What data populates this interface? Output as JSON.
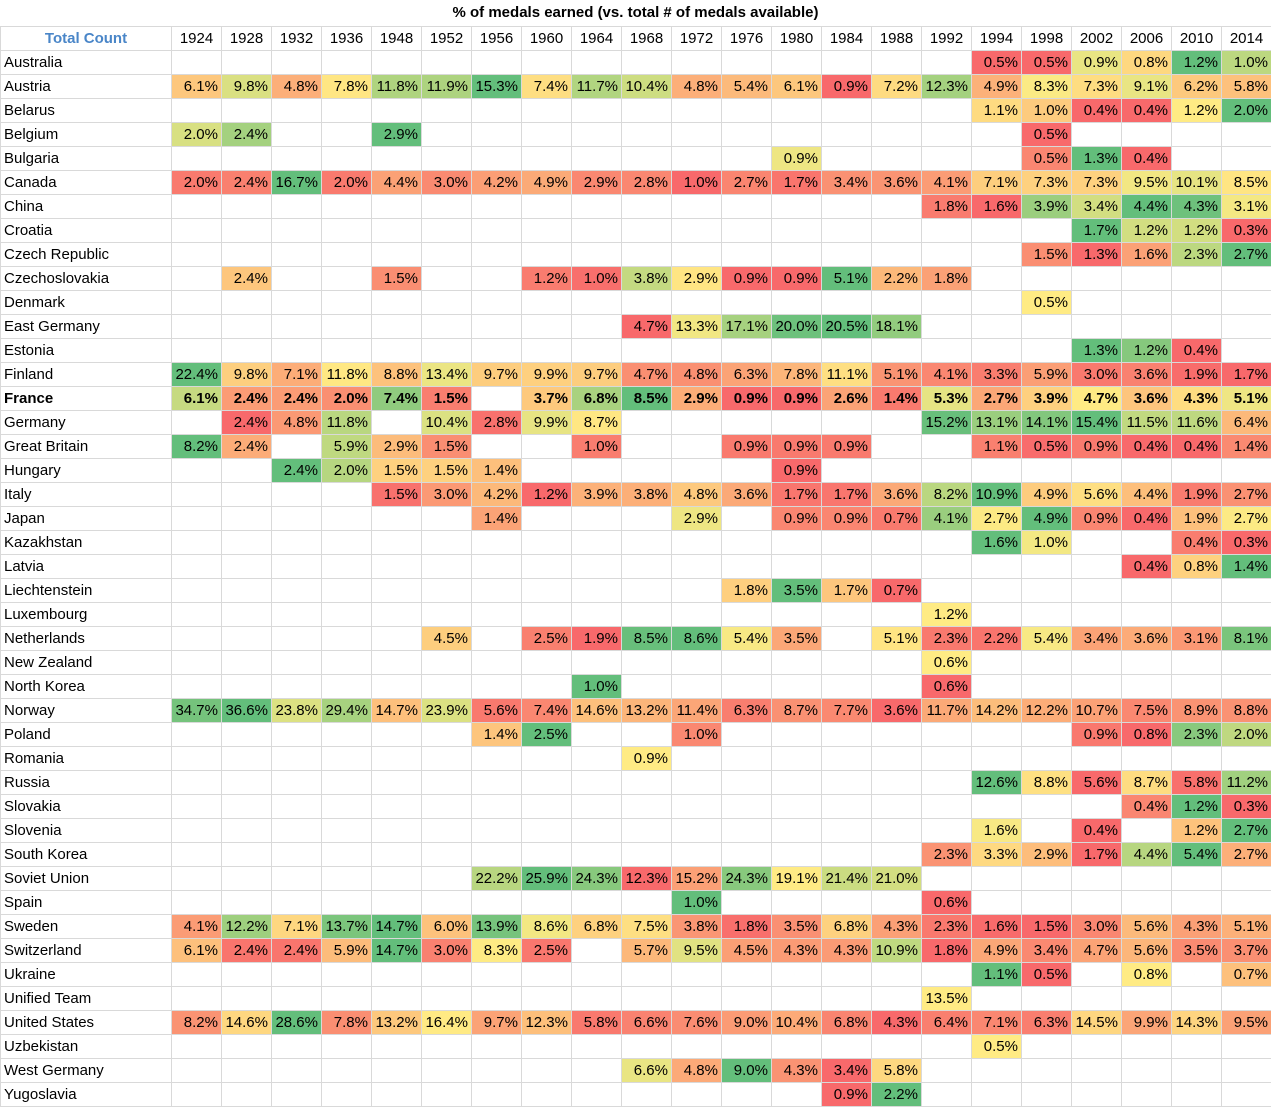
{
  "title": "% of medals earned (vs. total # of medals available)",
  "corner_label": "Total Count",
  "bold_row": "France",
  "colors": {
    "low": "#f8696b",
    "mid": "#ffeb84",
    "high": "#63be7b",
    "header_text": "#4a86c8"
  },
  "chart_data": {
    "type": "heatmap",
    "title": "% of medals earned (vs. total # of medals available)",
    "columns": [
      "1924",
      "1928",
      "1932",
      "1936",
      "1948",
      "1952",
      "1956",
      "1960",
      "1964",
      "1968",
      "1972",
      "1976",
      "1980",
      "1984",
      "1988",
      "1992",
      "1994",
      "1998",
      "2002",
      "2006",
      "2010",
      "2014"
    ],
    "rows": [
      {
        "country": "Australia",
        "values": [
          null,
          null,
          null,
          null,
          null,
          null,
          null,
          null,
          null,
          null,
          null,
          null,
          null,
          null,
          null,
          null,
          0.5,
          0.5,
          0.9,
          0.8,
          1.2,
          1.0
        ]
      },
      {
        "country": "Austria",
        "values": [
          6.1,
          9.8,
          4.8,
          7.8,
          11.8,
          11.9,
          15.3,
          7.4,
          11.7,
          10.4,
          4.8,
          5.4,
          6.1,
          0.9,
          7.2,
          12.3,
          4.9,
          8.3,
          7.3,
          9.1,
          6.2,
          5.8
        ]
      },
      {
        "country": "Belarus",
        "values": [
          null,
          null,
          null,
          null,
          null,
          null,
          null,
          null,
          null,
          null,
          null,
          null,
          null,
          null,
          null,
          null,
          1.1,
          1.0,
          0.4,
          0.4,
          1.2,
          2.0
        ]
      },
      {
        "country": "Belgium",
        "values": [
          2.0,
          2.4,
          null,
          null,
          2.9,
          null,
          null,
          null,
          null,
          null,
          null,
          null,
          null,
          null,
          null,
          null,
          null,
          0.5,
          null,
          null,
          null,
          null
        ]
      },
      {
        "country": "Bulgaria",
        "values": [
          null,
          null,
          null,
          null,
          null,
          null,
          null,
          null,
          null,
          null,
          null,
          null,
          0.9,
          null,
          null,
          null,
          null,
          0.5,
          1.3,
          0.4,
          null,
          null
        ]
      },
      {
        "country": "Canada",
        "values": [
          2.0,
          2.4,
          16.7,
          2.0,
          4.4,
          3.0,
          4.2,
          4.9,
          2.9,
          2.8,
          1.0,
          2.7,
          1.7,
          3.4,
          3.6,
          4.1,
          7.1,
          7.3,
          7.3,
          9.5,
          10.1,
          8.5
        ]
      },
      {
        "country": "China",
        "values": [
          null,
          null,
          null,
          null,
          null,
          null,
          null,
          null,
          null,
          null,
          null,
          null,
          null,
          null,
          null,
          1.8,
          1.6,
          3.9,
          3.4,
          4.4,
          4.3,
          3.1
        ]
      },
      {
        "country": "Croatia",
        "values": [
          null,
          null,
          null,
          null,
          null,
          null,
          null,
          null,
          null,
          null,
          null,
          null,
          null,
          null,
          null,
          null,
          null,
          null,
          1.7,
          1.2,
          1.2,
          0.3
        ]
      },
      {
        "country": "Czech Republic",
        "values": [
          null,
          null,
          null,
          null,
          null,
          null,
          null,
          null,
          null,
          null,
          null,
          null,
          null,
          null,
          null,
          null,
          null,
          1.5,
          1.3,
          1.6,
          2.3,
          2.7
        ]
      },
      {
        "country": "Czechoslovakia",
        "values": [
          null,
          2.4,
          null,
          null,
          1.5,
          null,
          null,
          1.2,
          1.0,
          3.8,
          2.9,
          0.9,
          0.9,
          5.1,
          2.2,
          1.8,
          null,
          null,
          null,
          null,
          null,
          null
        ]
      },
      {
        "country": "Denmark",
        "values": [
          null,
          null,
          null,
          null,
          null,
          null,
          null,
          null,
          null,
          null,
          null,
          null,
          null,
          null,
          null,
          null,
          null,
          0.5,
          null,
          null,
          null,
          null
        ]
      },
      {
        "country": "East Germany",
        "values": [
          null,
          null,
          null,
          null,
          null,
          null,
          null,
          null,
          null,
          4.7,
          13.3,
          17.1,
          20.0,
          20.5,
          18.1,
          null,
          null,
          null,
          null,
          null,
          null,
          null
        ]
      },
      {
        "country": "Estonia",
        "values": [
          null,
          null,
          null,
          null,
          null,
          null,
          null,
          null,
          null,
          null,
          null,
          null,
          null,
          null,
          null,
          null,
          null,
          null,
          1.3,
          1.2,
          0.4,
          null
        ]
      },
      {
        "country": "Finland",
        "values": [
          22.4,
          9.8,
          7.1,
          11.8,
          8.8,
          13.4,
          9.7,
          9.9,
          9.7,
          4.7,
          4.8,
          6.3,
          7.8,
          11.1,
          5.1,
          4.1,
          3.3,
          5.9,
          3.0,
          3.6,
          1.9,
          1.7
        ]
      },
      {
        "country": "France",
        "values": [
          6.1,
          2.4,
          2.4,
          2.0,
          7.4,
          1.5,
          null,
          3.7,
          6.8,
          8.5,
          2.9,
          0.9,
          0.9,
          2.6,
          1.4,
          5.3,
          2.7,
          3.9,
          4.7,
          3.6,
          4.3,
          5.1
        ]
      },
      {
        "country": "Germany",
        "values": [
          null,
          2.4,
          4.8,
          11.8,
          null,
          10.4,
          2.8,
          9.9,
          8.7,
          null,
          null,
          null,
          null,
          null,
          null,
          15.2,
          13.1,
          14.1,
          15.4,
          11.5,
          11.6,
          6.4
        ]
      },
      {
        "country": "Great Britain",
        "values": [
          8.2,
          2.4,
          null,
          5.9,
          2.9,
          1.5,
          null,
          null,
          1.0,
          null,
          null,
          0.9,
          0.9,
          0.9,
          null,
          null,
          1.1,
          0.5,
          0.9,
          0.4,
          0.4,
          1.4
        ]
      },
      {
        "country": "Hungary",
        "values": [
          null,
          null,
          2.4,
          2.0,
          1.5,
          1.5,
          1.4,
          null,
          null,
          null,
          null,
          null,
          0.9,
          null,
          null,
          null,
          null,
          null,
          null,
          null,
          null,
          null
        ]
      },
      {
        "country": "Italy",
        "values": [
          null,
          null,
          null,
          null,
          1.5,
          3.0,
          4.2,
          1.2,
          3.9,
          3.8,
          4.8,
          3.6,
          1.7,
          1.7,
          3.6,
          8.2,
          10.9,
          4.9,
          5.6,
          4.4,
          1.9,
          2.7
        ]
      },
      {
        "country": "Japan",
        "values": [
          null,
          null,
          null,
          null,
          null,
          null,
          1.4,
          null,
          null,
          null,
          2.9,
          null,
          0.9,
          0.9,
          0.7,
          4.1,
          2.7,
          4.9,
          0.9,
          0.4,
          1.9,
          2.7
        ]
      },
      {
        "country": "Kazakhstan",
        "values": [
          null,
          null,
          null,
          null,
          null,
          null,
          null,
          null,
          null,
          null,
          null,
          null,
          null,
          null,
          null,
          null,
          1.6,
          1.0,
          null,
          null,
          0.4,
          0.3
        ]
      },
      {
        "country": "Latvia",
        "values": [
          null,
          null,
          null,
          null,
          null,
          null,
          null,
          null,
          null,
          null,
          null,
          null,
          null,
          null,
          null,
          null,
          null,
          null,
          null,
          0.4,
          0.8,
          1.4
        ]
      },
      {
        "country": "Liechtenstein",
        "values": [
          null,
          null,
          null,
          null,
          null,
          null,
          null,
          null,
          null,
          null,
          null,
          1.8,
          3.5,
          1.7,
          0.7,
          null,
          null,
          null,
          null,
          null,
          null,
          null
        ]
      },
      {
        "country": "Luxembourg",
        "values": [
          null,
          null,
          null,
          null,
          null,
          null,
          null,
          null,
          null,
          null,
          null,
          null,
          null,
          null,
          null,
          1.2,
          null,
          null,
          null,
          null,
          null,
          null
        ]
      },
      {
        "country": "Netherlands",
        "values": [
          null,
          null,
          null,
          null,
          null,
          4.5,
          null,
          2.5,
          1.9,
          8.5,
          8.6,
          5.4,
          3.5,
          null,
          5.1,
          2.3,
          2.2,
          5.4,
          3.4,
          3.6,
          3.1,
          8.1
        ]
      },
      {
        "country": "New Zealand",
        "values": [
          null,
          null,
          null,
          null,
          null,
          null,
          null,
          null,
          null,
          null,
          null,
          null,
          null,
          null,
          null,
          0.6,
          null,
          null,
          null,
          null,
          null,
          null
        ]
      },
      {
        "country": "North Korea",
        "values": [
          null,
          null,
          null,
          null,
          null,
          null,
          null,
          null,
          1.0,
          null,
          null,
          null,
          null,
          null,
          null,
          0.6,
          null,
          null,
          null,
          null,
          null,
          null
        ]
      },
      {
        "country": "Norway",
        "values": [
          34.7,
          36.6,
          23.8,
          29.4,
          14.7,
          23.9,
          5.6,
          7.4,
          14.6,
          13.2,
          11.4,
          6.3,
          8.7,
          7.7,
          3.6,
          11.7,
          14.2,
          12.2,
          10.7,
          7.5,
          8.9,
          8.8
        ]
      },
      {
        "country": "Poland",
        "values": [
          null,
          null,
          null,
          null,
          null,
          null,
          1.4,
          2.5,
          null,
          null,
          1.0,
          null,
          null,
          null,
          null,
          null,
          null,
          null,
          0.9,
          0.8,
          2.3,
          2.0
        ]
      },
      {
        "country": "Romania",
        "values": [
          null,
          null,
          null,
          null,
          null,
          null,
          null,
          null,
          null,
          0.9,
          null,
          null,
          null,
          null,
          null,
          null,
          null,
          null,
          null,
          null,
          null,
          null
        ]
      },
      {
        "country": "Russia",
        "values": [
          null,
          null,
          null,
          null,
          null,
          null,
          null,
          null,
          null,
          null,
          null,
          null,
          null,
          null,
          null,
          null,
          12.6,
          8.8,
          5.6,
          8.7,
          5.8,
          11.2
        ]
      },
      {
        "country": "Slovakia",
        "values": [
          null,
          null,
          null,
          null,
          null,
          null,
          null,
          null,
          null,
          null,
          null,
          null,
          null,
          null,
          null,
          null,
          null,
          null,
          null,
          0.4,
          1.2,
          0.3
        ]
      },
      {
        "country": "Slovenia",
        "values": [
          null,
          null,
          null,
          null,
          null,
          null,
          null,
          null,
          null,
          null,
          null,
          null,
          null,
          null,
          null,
          null,
          1.6,
          null,
          0.4,
          null,
          1.2,
          2.7
        ]
      },
      {
        "country": "South Korea",
        "values": [
          null,
          null,
          null,
          null,
          null,
          null,
          null,
          null,
          null,
          null,
          null,
          null,
          null,
          null,
          null,
          2.3,
          3.3,
          2.9,
          1.7,
          4.4,
          5.4,
          2.7
        ]
      },
      {
        "country": "Soviet Union",
        "values": [
          null,
          null,
          null,
          null,
          null,
          null,
          22.2,
          25.9,
          24.3,
          12.3,
          15.2,
          24.3,
          19.1,
          21.4,
          21.0,
          null,
          null,
          null,
          null,
          null,
          null,
          null
        ]
      },
      {
        "country": "Spain",
        "values": [
          null,
          null,
          null,
          null,
          null,
          null,
          null,
          null,
          null,
          null,
          1.0,
          null,
          null,
          null,
          null,
          0.6,
          null,
          null,
          null,
          null,
          null,
          null
        ]
      },
      {
        "country": "Sweden",
        "values": [
          4.1,
          12.2,
          7.1,
          13.7,
          14.7,
          6.0,
          13.9,
          8.6,
          6.8,
          7.5,
          3.8,
          1.8,
          3.5,
          6.8,
          4.3,
          2.3,
          1.6,
          1.5,
          3.0,
          5.6,
          4.3,
          5.1
        ]
      },
      {
        "country": "Switzerland",
        "values": [
          6.1,
          2.4,
          2.4,
          5.9,
          14.7,
          3.0,
          8.3,
          2.5,
          null,
          5.7,
          9.5,
          4.5,
          4.3,
          4.3,
          10.9,
          1.8,
          4.9,
          3.4,
          4.7,
          5.6,
          3.5,
          3.7
        ]
      },
      {
        "country": "Ukraine",
        "values": [
          null,
          null,
          null,
          null,
          null,
          null,
          null,
          null,
          null,
          null,
          null,
          null,
          null,
          null,
          null,
          null,
          1.1,
          0.5,
          null,
          0.8,
          null,
          0.7
        ]
      },
      {
        "country": "Unified Team",
        "values": [
          null,
          null,
          null,
          null,
          null,
          null,
          null,
          null,
          null,
          null,
          null,
          null,
          null,
          null,
          null,
          13.5,
          null,
          null,
          null,
          null,
          null,
          null
        ]
      },
      {
        "country": "United States",
        "values": [
          8.2,
          14.6,
          28.6,
          7.8,
          13.2,
          16.4,
          9.7,
          12.3,
          5.8,
          6.6,
          7.6,
          9.0,
          10.4,
          6.8,
          4.3,
          6.4,
          7.1,
          6.3,
          14.5,
          9.9,
          14.3,
          9.5
        ]
      },
      {
        "country": "Uzbekistan",
        "values": [
          null,
          null,
          null,
          null,
          null,
          null,
          null,
          null,
          null,
          null,
          null,
          null,
          null,
          null,
          null,
          null,
          0.5,
          null,
          null,
          null,
          null,
          null
        ]
      },
      {
        "country": "West Germany",
        "values": [
          null,
          null,
          null,
          null,
          null,
          null,
          null,
          null,
          null,
          6.6,
          4.8,
          9.0,
          4.3,
          3.4,
          5.8,
          null,
          null,
          null,
          null,
          null,
          null,
          null
        ]
      },
      {
        "country": "Yugoslavia",
        "values": [
          null,
          null,
          null,
          null,
          null,
          null,
          null,
          null,
          null,
          null,
          null,
          null,
          null,
          0.9,
          2.2,
          null,
          null,
          null,
          null,
          null,
          null,
          null
        ]
      }
    ]
  }
}
